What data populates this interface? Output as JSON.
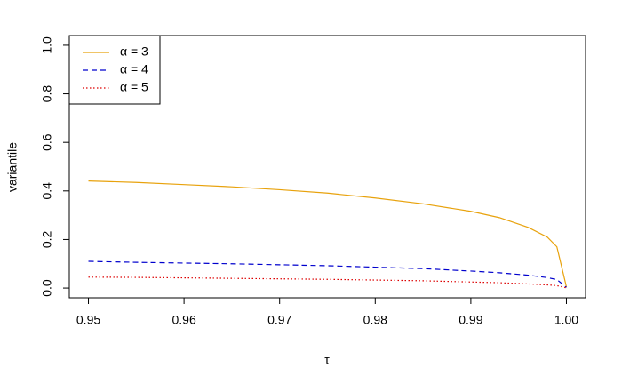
{
  "chart_data": {
    "type": "line",
    "x_label": "τ",
    "y_label": "variantile",
    "x": [
      0.95,
      0.955,
      0.96,
      0.965,
      0.97,
      0.975,
      0.98,
      0.985,
      0.99,
      0.993,
      0.996,
      0.998,
      0.999,
      1.0
    ],
    "series": [
      {
        "name": "α = 3",
        "color": "#E8A20C",
        "dash": "solid",
        "values": [
          0.441,
          0.435,
          0.426,
          0.417,
          0.405,
          0.391,
          0.371,
          0.347,
          0.316,
          0.29,
          0.25,
          0.21,
          0.17,
          0.005
        ]
      },
      {
        "name": "α = 4",
        "color": "#0000CD",
        "dash": "dashed",
        "values": [
          0.11,
          0.106,
          0.103,
          0.1,
          0.096,
          0.092,
          0.086,
          0.08,
          0.07,
          0.063,
          0.053,
          0.043,
          0.035,
          0.003
        ]
      },
      {
        "name": "α = 5",
        "color": "#DD0000",
        "dash": "dotted",
        "values": [
          0.045,
          0.044,
          0.042,
          0.04,
          0.038,
          0.036,
          0.033,
          0.03,
          0.025,
          0.022,
          0.017,
          0.013,
          0.01,
          0.001
        ]
      }
    ],
    "xlim": [
      0.948,
      1.002
    ],
    "ylim": [
      -0.04,
      1.04
    ],
    "xticks": [
      0.95,
      0.96,
      0.97,
      0.98,
      0.99,
      {
        "value": 1.0,
        "label": "1.00"
      }
    ],
    "yticks": [
      {
        "value": 0,
        "label": "0.0"
      },
      0.2,
      0.4,
      0.6,
      0.8,
      {
        "value": 1.0,
        "label": "1.0"
      }
    ],
    "legend": "top-left"
  }
}
